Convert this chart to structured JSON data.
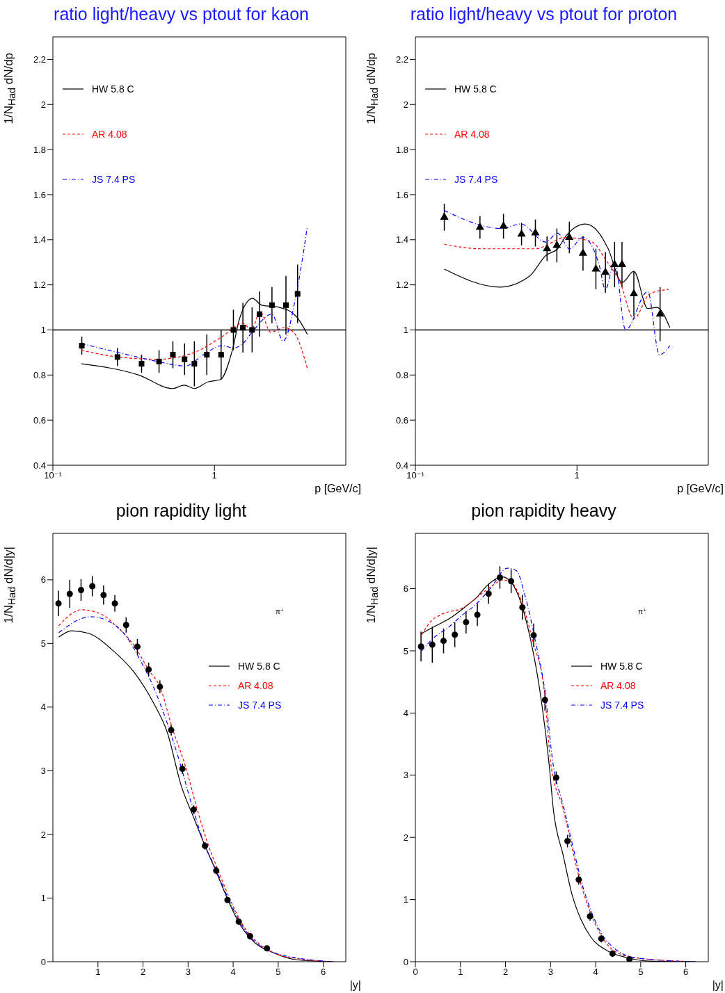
{
  "chart_data": [
    {
      "type": "line",
      "title": "ratio light/heavy vs ptout for kaon",
      "xlabel": "p [GeV/c]",
      "ylabel": "1/N$_{Had}$ dN/dp",
      "log": "x",
      "xlim": [
        0.1,
        6.5
      ],
      "ylim": [
        0.4,
        2.3
      ],
      "xticks": [
        {
          "value": 0.1,
          "label": "10⁻¹"
        },
        1
      ],
      "yticks": [
        0.4,
        0.6,
        0.8,
        1,
        1.2,
        1.4,
        1.6,
        1.8,
        2,
        2.2
      ],
      "legend": "top left",
      "ref_lines": [
        {
          "axis": "y",
          "value": 1
        }
      ],
      "series": [
        {
          "type": "scatter",
          "marker": "square",
          "color": "#000000",
          "x": [
            0.151,
            0.251,
            0.354,
            0.454,
            0.553,
            0.653,
            0.751,
            0.897,
            1.1,
            1.31,
            1.5,
            1.71,
            1.9,
            2.27,
            2.77,
            3.27
          ],
          "values": [
            0.93,
            0.88,
            0.85,
            0.86,
            0.89,
            0.87,
            0.85,
            0.89,
            0.89,
            1.0,
            1.01,
            1.0,
            1.07,
            1.11,
            1.11,
            1.16
          ],
          "errors": [
            0.04,
            0.04,
            0.04,
            0.05,
            0.06,
            0.07,
            0.1,
            0.09,
            0.11,
            0.09,
            0.11,
            0.1,
            0.1,
            0.08,
            0.13,
            0.13
          ]
        },
        {
          "name": "HW 5.8 C",
          "color": "#000000",
          "line_style": "solid",
          "x": [
            0.15,
            0.34,
            0.55,
            0.65,
            0.75,
            0.915,
            1.09,
            1.29,
            1.43,
            1.72,
            1.96,
            2.53,
            3.21,
            3.76
          ],
          "values": [
            0.85,
            0.8,
            0.74,
            0.755,
            0.74,
            0.77,
            0.78,
            0.91,
            1.05,
            1.14,
            1.11,
            1.1,
            1.06,
            0.98
          ]
        },
        {
          "name": "AR 4.08",
          "color": "#ff0000",
          "line_style": "dashed",
          "x": [
            0.15,
            0.253,
            0.445,
            0.751,
            1.115,
            1.5,
            1.69,
            1.92,
            2.23,
            2.71,
            3.09,
            3.76
          ],
          "values": [
            0.91,
            0.88,
            0.87,
            0.9,
            0.97,
            1.03,
            1.0,
            1.08,
            0.99,
            1.01,
            0.99,
            0.83
          ]
        },
        {
          "name": "JS 7.4 PS",
          "color": "#0000ff",
          "line_style": "dotted",
          "x": [
            0.15,
            0.253,
            0.445,
            0.66,
            0.854,
            1.115,
            1.32,
            1.5,
            1.71,
            2.27,
            2.66,
            3.21,
            3.76
          ],
          "values": [
            0.94,
            0.9,
            0.86,
            0.84,
            0.89,
            0.93,
            0.92,
            0.94,
            0.99,
            1.07,
            0.95,
            1.16,
            1.46
          ]
        }
      ]
    },
    {
      "type": "line",
      "title": "ratio light/heavy vs ptout for proton",
      "xlabel": "p [GeV/c]",
      "ylabel": "1/N$_{Had}$ dN/dp",
      "log": "x",
      "xlim": [
        0.1,
        6.5
      ],
      "ylim": [
        0.4,
        2.3
      ],
      "xticks": [
        {
          "value": 0.1,
          "label": "10⁻¹"
        },
        1
      ],
      "yticks": [
        0.4,
        0.6,
        0.8,
        1,
        1.2,
        1.4,
        1.6,
        1.8,
        2,
        2.2
      ],
      "legend": "top left",
      "ref_lines": [
        {
          "axis": "y",
          "value": 1
        }
      ],
      "series": [
        {
          "type": "scatter",
          "marker": "triangle",
          "color": "#000000",
          "x": [
            0.151,
            0.251,
            0.351,
            0.454,
            0.553,
            0.653,
            0.751,
            0.897,
            1.09,
            1.31,
            1.5,
            1.71,
            1.9,
            2.25,
            3.27
          ],
          "values": [
            1.5,
            1.455,
            1.46,
            1.425,
            1.43,
            1.36,
            1.375,
            1.41,
            1.34,
            1.27,
            1.255,
            1.29,
            1.29,
            1.16,
            1.07
          ],
          "errors": [
            0.06,
            0.05,
            0.055,
            0.05,
            0.06,
            0.055,
            0.075,
            0.07,
            0.077,
            0.09,
            0.09,
            0.1,
            0.1,
            0.1,
            0.12
          ]
        },
        {
          "name": "HW 5.8 C",
          "color": "#000000",
          "line_style": "solid",
          "x": [
            0.151,
            0.333,
            0.511,
            0.641,
            0.759,
            0.862,
            1.13,
            1.37,
            1.56,
            1.9,
            2.25,
            2.74,
            3.12,
            3.76
          ],
          "values": [
            1.27,
            1.19,
            1.24,
            1.33,
            1.36,
            1.42,
            1.47,
            1.43,
            1.36,
            1.21,
            1.26,
            1.095,
            1.1,
            1.01
          ]
        },
        {
          "name": "AR 4.08",
          "color": "#ff0000",
          "line_style": "dashed",
          "x": [
            0.151,
            0.256,
            0.547,
            0.862,
            1.24,
            1.51,
            1.85,
            2.25,
            2.82,
            3.69
          ],
          "values": [
            1.38,
            1.36,
            1.36,
            1.41,
            1.39,
            1.31,
            1.21,
            1.05,
            1.16,
            1.18
          ]
        },
        {
          "name": "JS 7.4 PS",
          "color": "#0000ff",
          "line_style": "dotted",
          "x": [
            0.151,
            0.344,
            0.449,
            0.641,
            0.759,
            0.897,
            1.09,
            1.37,
            1.5,
            1.71,
            2.0,
            2.74,
            3.24,
            3.76
          ],
          "values": [
            1.53,
            1.45,
            1.47,
            1.39,
            1.43,
            1.36,
            1.41,
            1.29,
            1.18,
            1.3,
            1.0,
            1.17,
            0.89,
            0.93
          ]
        }
      ]
    },
    {
      "type": "line",
      "title": "pion rapidity light",
      "xlabel": "|y|",
      "ylabel": "1/N$_{Had}$ dN/d|y|",
      "xlim": [
        0,
        6.5
      ],
      "ylim": [
        0,
        6.73
      ],
      "xticks": [
        1,
        2,
        3,
        4,
        5,
        6
      ],
      "yticks": [
        0,
        1,
        2,
        3,
        4,
        5,
        6
      ],
      "legend": "right",
      "annotations": [
        "π⁺"
      ],
      "series": [
        {
          "type": "scatter",
          "marker": "circle",
          "color": "#000000",
          "x": [
            0.125,
            0.375,
            0.625,
            0.875,
            1.125,
            1.375,
            1.625,
            1.875,
            2.125,
            2.375,
            2.625,
            2.875,
            3.125,
            3.375,
            3.625,
            3.875,
            4.125,
            4.375,
            4.75
          ],
          "values": [
            5.63,
            5.78,
            5.84,
            5.9,
            5.76,
            5.63,
            5.29,
            4.95,
            4.59,
            4.32,
            3.64,
            3.03,
            2.39,
            1.82,
            1.43,
            0.97,
            0.63,
            0.4,
            0.21
          ],
          "errors": [
            0.2,
            0.22,
            0.17,
            0.16,
            0.15,
            0.13,
            0.12,
            0.12,
            0.11,
            0.1,
            0.08,
            0.08,
            0.07,
            0.06,
            0.06,
            0.05,
            0.05,
            0.05,
            0.04
          ]
        },
        {
          "name": "HW 5.8 C",
          "color": "#000000",
          "line_style": "solid",
          "x": [
            0.13,
            0.42,
            0.79,
            1.3,
            1.81,
            2.23,
            2.54,
            2.85,
            3.11,
            3.36,
            3.62,
            3.88,
            4.13,
            4.39,
            4.9,
            5.42,
            6.2
          ],
          "values": [
            5.1,
            5.2,
            5.16,
            4.91,
            4.54,
            4.07,
            3.6,
            2.76,
            2.29,
            1.85,
            1.42,
            0.98,
            0.61,
            0.36,
            0.14,
            0.03,
            0
          ]
        },
        {
          "name": "AR 4.08",
          "color": "#ff0000",
          "line_style": "dashed",
          "x": [
            0.13,
            0.64,
            1.1,
            1.41,
            1.81,
            2.12,
            2.38,
            2.65,
            2.96,
            3.2,
            3.46,
            3.66,
            3.93,
            4.24,
            4.5,
            4.9,
            5.42,
            6.24
          ],
          "values": [
            5.28,
            5.53,
            5.45,
            5.27,
            4.96,
            4.59,
            4.31,
            3.67,
            3.03,
            2.4,
            1.81,
            1.45,
            0.98,
            0.55,
            0.33,
            0.14,
            0.05,
            0
          ]
        },
        {
          "name": "JS 7.4 PS",
          "color": "#0000ff",
          "line_style": "dotted",
          "x": [
            0.13,
            0.84,
            1.26,
            1.61,
            1.92,
            2.23,
            2.54,
            2.74,
            3.11,
            3.36,
            3.62,
            3.88,
            4.19,
            4.9,
            6.2
          ],
          "values": [
            5.17,
            5.42,
            5.34,
            5.13,
            4.76,
            4.32,
            3.74,
            3.31,
            2.4,
            1.85,
            1.45,
            1.01,
            0.58,
            0.14,
            0
          ]
        }
      ]
    },
    {
      "type": "line",
      "title": "pion rapidity heavy",
      "xlabel": "|y|",
      "ylabel": "1/N$_{Had}$ dN/d|y|",
      "xlim": [
        0,
        6.5
      ],
      "ylim": [
        0,
        6.89
      ],
      "xticks": [
        0,
        1,
        2,
        3,
        4,
        5,
        6
      ],
      "yticks": [
        0,
        1,
        2,
        3,
        4,
        5,
        6
      ],
      "legend": "right",
      "annotations": [
        "π⁺"
      ],
      "series": [
        {
          "type": "scatter",
          "marker": "circle",
          "color": "#000000",
          "x": [
            0.125,
            0.375,
            0.625,
            0.875,
            1.125,
            1.375,
            1.625,
            1.875,
            2.125,
            2.375,
            2.625,
            2.875,
            3.125,
            3.375,
            3.625,
            3.875,
            4.125,
            4.375,
            4.75
          ],
          "values": [
            5.07,
            5.1,
            5.16,
            5.26,
            5.46,
            5.58,
            5.92,
            6.18,
            6.12,
            5.7,
            5.25,
            4.21,
            2.96,
            1.94,
            1.32,
            0.73,
            0.37,
            0.13,
            0.04
          ],
          "errors": [
            0.24,
            0.29,
            0.2,
            0.2,
            0.18,
            0.18,
            0.16,
            0.18,
            0.19,
            0.2,
            0.19,
            0.17,
            0.1,
            0.1,
            0.08,
            0.07,
            0.06,
            0.05,
            0.04
          ]
        },
        {
          "name": "HW 5.8 C",
          "color": "#000000",
          "line_style": "solid",
          "x": [
            0.14,
            0.39,
            0.8,
            1.11,
            1.36,
            1.62,
            1.93,
            2.13,
            2.35,
            2.55,
            2.75,
            2.97,
            3.06,
            3.28,
            3.48,
            3.68,
            3.89,
            4.25,
            4.67,
            5.18,
            6.21
          ],
          "values": [
            5.28,
            5.38,
            5.54,
            5.71,
            5.86,
            6.07,
            6.19,
            6.1,
            5.76,
            5.2,
            4.42,
            3.16,
            2.46,
            1.71,
            1.07,
            0.67,
            0.4,
            0.18,
            0.07,
            0.01,
            0
          ]
        },
        {
          "name": "AR 4.08",
          "color": "#ff0000",
          "line_style": "dashed",
          "x": [
            0.14,
            0.34,
            0.59,
            1.05,
            1.47,
            1.73,
            1.93,
            2.13,
            2.35,
            2.6,
            2.86,
            3.01,
            3.28,
            3.48,
            3.68,
            3.89,
            4.14,
            4.4,
            4.91,
            6.21
          ],
          "values": [
            5.26,
            5.47,
            5.59,
            5.69,
            5.92,
            6.06,
            6.14,
            6.1,
            5.81,
            5.17,
            4.35,
            3.16,
            2.46,
            1.82,
            1.23,
            0.78,
            0.4,
            0.18,
            0.06,
            0
          ]
        },
        {
          "name": "JS 7.4 PS",
          "color": "#0000ff",
          "line_style": "dotted",
          "x": [
            0.14,
            0.39,
            0.7,
            1.05,
            1.36,
            1.67,
            2.04,
            2.24,
            2.44,
            2.66,
            2.86,
            3.06,
            3.28,
            3.48,
            3.74,
            3.94,
            4.25,
            4.91,
            6.21
          ],
          "values": [
            5.0,
            5.2,
            5.36,
            5.58,
            5.76,
            6.01,
            6.33,
            6.29,
            5.87,
            5.17,
            4.42,
            3.16,
            2.52,
            1.9,
            1.15,
            0.74,
            0.33,
            0.06,
            0
          ]
        }
      ]
    }
  ]
}
